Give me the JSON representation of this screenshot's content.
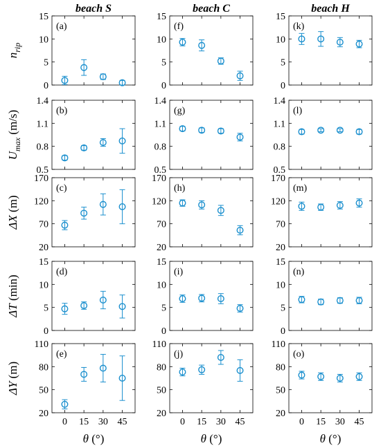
{
  "chart_data": {
    "type": "scatter",
    "layout": "grid-5x3",
    "marker": "open-circle-with-errorbars",
    "color": "#1a8fce",
    "columns": [
      "beach S",
      "beach C",
      "beach H"
    ],
    "x": [
      0,
      15,
      30,
      45
    ],
    "xticks": [
      0,
      15,
      30,
      45
    ],
    "xlabel": {
      "symbol": "θ",
      "unit": "(°)"
    },
    "rows": [
      {
        "ylabel": {
          "symbol": "n",
          "sub": "rip",
          "unit": ""
        },
        "ylim": [
          0,
          15
        ],
        "yticks": [
          "0",
          "5",
          "10",
          "15"
        ]
      },
      {
        "ylabel": {
          "symbol": "U",
          "sub": "max",
          "unit": " (m/s)"
        },
        "ylim": [
          0.5,
          1.4
        ],
        "yticks": [
          "0.5",
          "0.8",
          "1.1",
          "1.4"
        ]
      },
      {
        "ylabel": {
          "symbol": "ΔX",
          "sub": "",
          "unit": " (m)"
        },
        "ylim": [
          20,
          170
        ],
        "yticks": [
          "20",
          "70",
          "120",
          "170"
        ]
      },
      {
        "ylabel": {
          "symbol": "ΔT",
          "sub": "",
          "unit": " (min)"
        },
        "ylim": [
          0,
          15
        ],
        "yticks": [
          "0",
          "5",
          "10",
          "15"
        ]
      },
      {
        "ylabel": {
          "symbol": "ΔY",
          "sub": "",
          "unit": " (m)"
        },
        "ylim": [
          20,
          110
        ],
        "yticks": [
          "20",
          "50",
          "80",
          "110"
        ]
      }
    ],
    "panels": [
      [
        {
          "label": "(a)",
          "y": [
            1.0,
            3.8,
            1.8,
            0.5
          ],
          "err": [
            0.9,
            1.7,
            0.6,
            0.5
          ]
        },
        {
          "label": "(f)",
          "y": [
            9.3,
            8.6,
            5.2,
            2.0
          ],
          "err": [
            0.8,
            1.2,
            0.7,
            1.0
          ]
        },
        {
          "label": "(k)",
          "y": [
            10.0,
            10.0,
            9.3,
            8.9
          ],
          "err": [
            1.2,
            1.6,
            1.0,
            0.8
          ]
        }
      ],
      [
        {
          "label": "(b)",
          "y": [
            0.65,
            0.78,
            0.85,
            0.87
          ],
          "err": [
            0.03,
            0.03,
            0.05,
            0.16
          ]
        },
        {
          "label": "(g)",
          "y": [
            1.03,
            1.01,
            1.0,
            0.92
          ],
          "err": [
            0.03,
            0.03,
            0.03,
            0.05
          ]
        },
        {
          "label": "(l)",
          "y": [
            0.99,
            1.01,
            1.01,
            0.99
          ],
          "err": [
            0.03,
            0.02,
            0.02,
            0.03
          ]
        }
      ],
      [
        {
          "label": "(c)",
          "y": [
            67,
            93,
            112,
            107
          ],
          "err": [
            10,
            13,
            23,
            37
          ]
        },
        {
          "label": "(h)",
          "y": [
            115,
            111,
            99,
            56
          ],
          "err": [
            7,
            9,
            11,
            10
          ]
        },
        {
          "label": "(m)",
          "y": [
            108,
            106,
            110,
            115
          ],
          "err": [
            9,
            7,
            8,
            9
          ]
        }
      ],
      [
        {
          "label": "(d)",
          "y": [
            4.7,
            5.4,
            6.6,
            5.2
          ],
          "err": [
            1.2,
            0.8,
            1.9,
            2.5
          ]
        },
        {
          "label": "(i)",
          "y": [
            6.9,
            7.0,
            6.9,
            4.8
          ],
          "err": [
            0.8,
            0.8,
            1.1,
            0.8
          ]
        },
        {
          "label": "(n)",
          "y": [
            6.7,
            6.2,
            6.5,
            6.5
          ],
          "err": [
            0.7,
            0.6,
            0.6,
            0.7
          ]
        }
      ],
      [
        {
          "label": "(e)",
          "y": [
            31,
            70,
            78,
            65
          ],
          "err": [
            6,
            9,
            18,
            29
          ]
        },
        {
          "label": "(j)",
          "y": [
            73,
            76,
            92,
            75
          ],
          "err": [
            5,
            6,
            9,
            14
          ]
        },
        {
          "label": "(o)",
          "y": [
            69,
            67,
            65,
            67
          ],
          "err": [
            5,
            5,
            5,
            5
          ]
        }
      ]
    ]
  }
}
